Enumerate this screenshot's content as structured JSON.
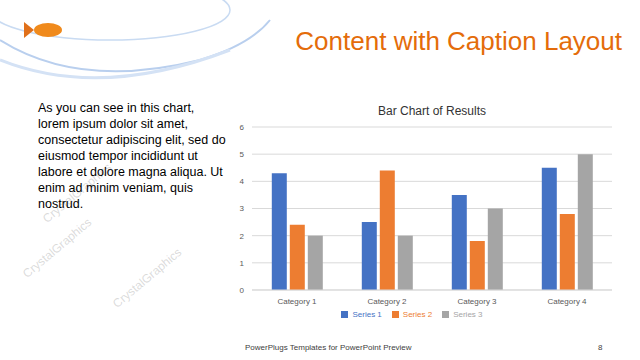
{
  "slide": {
    "title": "Content with Caption Layout",
    "caption": "As you can see in this chart, lorem ipsum dolor sit amet, consectetur adipiscing elit, sed do eiusmod tempor incididunt ut labore et dolore magna aliqua. Ut enim ad minim veniam, quis nostrud.",
    "footer": "PowerPlugs Templates for PowerPoint Preview",
    "page": 8,
    "watermark": "CrystalGraphics"
  },
  "chart_data": {
    "type": "bar",
    "title": "Bar Chart of Results",
    "categories": [
      "Category 1",
      "Category 2",
      "Category 3",
      "Category 4"
    ],
    "series": [
      {
        "name": "Series 1",
        "color": "#4472c4",
        "values": [
          4.3,
          2.5,
          3.5,
          4.5
        ]
      },
      {
        "name": "Series 2",
        "color": "#ed7d31",
        "values": [
          2.4,
          4.4,
          1.8,
          2.8
        ]
      },
      {
        "name": "Series 3",
        "color": "#a5a5a5",
        "values": [
          2,
          2,
          3,
          5
        ]
      }
    ],
    "ylim": [
      0,
      6
    ],
    "yticks": [
      0,
      1,
      2,
      3,
      4,
      5,
      6
    ],
    "grid": true,
    "legend": "bottom"
  }
}
